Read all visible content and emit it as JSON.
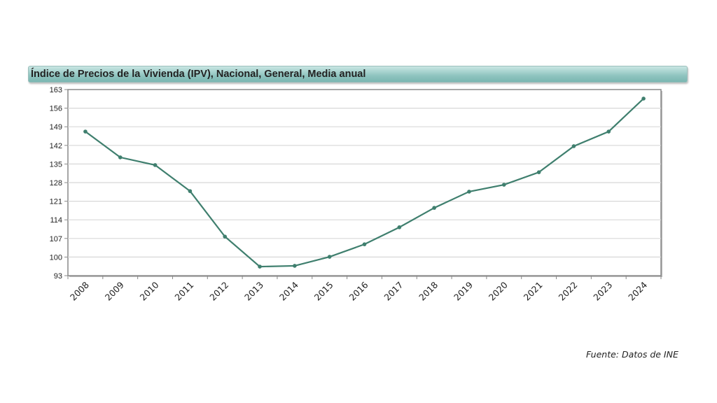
{
  "chart_data": {
    "type": "line",
    "title": "Índice de Precios de la Vivienda (IPV), Nacional, General, Media anual",
    "xlabel": "",
    "ylabel": "",
    "categories": [
      "2008",
      "2009",
      "2010",
      "2011",
      "2012",
      "2013",
      "2014",
      "2015",
      "2016",
      "2017",
      "2018",
      "2019",
      "2020",
      "2021",
      "2022",
      "2023",
      "2024"
    ],
    "values": [
      147.2,
      137.5,
      134.6,
      124.8,
      107.7,
      96.4,
      96.7,
      100.1,
      104.8,
      111.2,
      118.5,
      124.6,
      127.2,
      131.9,
      141.7,
      147.2,
      159.6
    ],
    "ylim": [
      93,
      163
    ],
    "yticks": [
      93,
      100,
      107,
      114,
      121,
      128,
      135,
      142,
      149,
      156,
      163
    ],
    "grid": true,
    "legend": "none",
    "line_color": "#3f7f6e"
  },
  "source": "Fuente: Datos de INE"
}
